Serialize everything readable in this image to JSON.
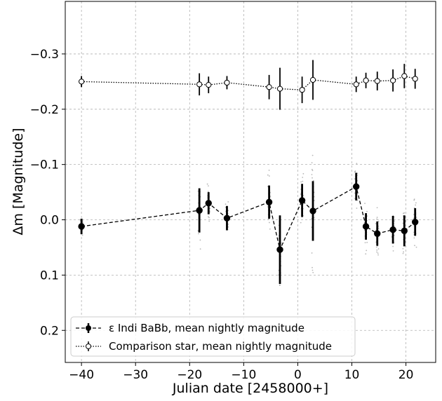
{
  "chart_data": {
    "type": "scatter",
    "xlabel": "Julian date [2458000+]",
    "ylabel": "Δm [Magnitude]",
    "xlim": [
      -43,
      25.5
    ],
    "ylim": [
      0.258,
      -0.395
    ],
    "y_inverted": true,
    "grid": true,
    "legend_position": "lower-left",
    "x_ticks": [
      -40,
      -30,
      -20,
      -10,
      0,
      10,
      20
    ],
    "y_ticks": [
      0.2,
      0.1,
      0.0,
      -0.1,
      -0.2,
      -0.3
    ],
    "x_tick_labels": [
      "−40",
      "−30",
      "−20",
      "−10",
      "0",
      "10",
      "20"
    ],
    "y_tick_labels": [
      "0.2",
      "0.1",
      "0.0",
      "−0.1",
      "−0.2",
      "−0.3"
    ],
    "series": [
      {
        "name": "ε Indi BaBb, mean nightly magnitude",
        "style": "filled-circle-dashed",
        "color": "#000000",
        "x": [
          -40.0,
          -18.2,
          -16.5,
          -13.1,
          -5.3,
          -3.3,
          0.8,
          2.8,
          10.8,
          12.6,
          14.7,
          17.6,
          19.7,
          21.7
        ],
        "y": [
          0.012,
          -0.017,
          -0.03,
          -0.003,
          -0.032,
          0.054,
          -0.035,
          -0.016,
          -0.06,
          0.012,
          0.025,
          0.018,
          0.02,
          0.004
        ],
        "yerr": [
          0.014,
          0.04,
          0.02,
          0.022,
          0.03,
          0.062,
          0.03,
          0.054,
          0.025,
          0.024,
          0.022,
          0.025,
          0.028,
          0.025
        ]
      },
      {
        "name": "Comparison star, mean nightly magnitude",
        "style": "open-circle-dotted",
        "color": "#000000",
        "x": [
          -40.0,
          -18.2,
          -16.5,
          -13.1,
          -5.3,
          -3.3,
          0.8,
          2.8,
          10.8,
          12.6,
          14.7,
          17.6,
          19.7,
          21.7
        ],
        "y": [
          -0.25,
          -0.245,
          -0.244,
          -0.248,
          -0.24,
          -0.237,
          -0.235,
          -0.253,
          -0.245,
          -0.252,
          -0.251,
          -0.252,
          -0.26,
          -0.255
        ],
        "yerr": [
          0.01,
          0.02,
          0.015,
          0.012,
          0.022,
          0.038,
          0.024,
          0.036,
          0.014,
          0.014,
          0.017,
          0.02,
          0.022,
          0.018
        ]
      }
    ],
    "individual_measurements": {
      "color": "#9a9a9a",
      "spread": [
        0.02,
        0.08,
        0.04,
        0.04,
        0.07,
        0.1,
        0.06,
        0.14,
        0.05,
        0.06,
        0.06,
        0.05,
        0.05,
        0.06
      ]
    }
  }
}
